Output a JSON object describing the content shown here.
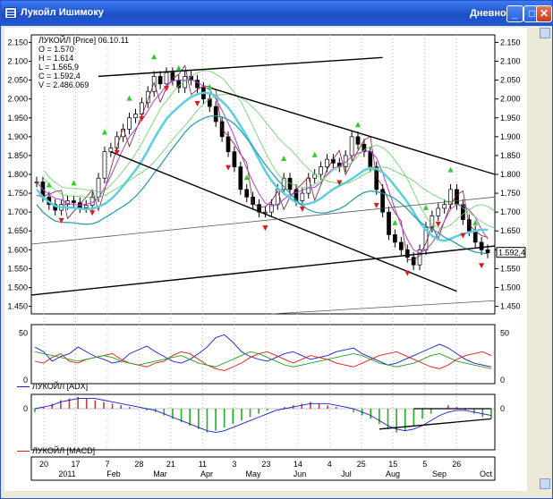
{
  "window": {
    "title": "Лукойл Ишимоку",
    "mode": "Дневной",
    "minimize_label": "_",
    "maximize_label": "□",
    "close_label": "✕"
  },
  "info": {
    "line1": "ЛУКОЙЛ [Price] 06.10.11",
    "line2": "O = 1.570",
    "line3": "H = 1.614",
    "line4": "L = 1.565,9",
    "line5": "C = 1.592,4",
    "line6": "V = 2.486.069"
  },
  "current_price_tag": "1.592,4",
  "price_axis": [
    "2.150",
    "2.100",
    "2.050",
    "2.000",
    "1.950",
    "1.900",
    "1.850",
    "1.800",
    "1.750",
    "1.700",
    "1.650",
    "1.600",
    "1.550",
    "1.500",
    "1.450"
  ],
  "left_axis": [
    "2.150",
    "2.100",
    "2.050",
    "2.000",
    "1.950",
    "1.900",
    "1.850",
    "1.800",
    "1.750",
    "1.700",
    "1.650",
    "1.600",
    "1.550",
    "1.500",
    "1.450"
  ],
  "adx_axis": [
    "50",
    "0"
  ],
  "macd_axis": [
    "0"
  ],
  "adx_legend": "ЛУКОЙЛ [ADX]",
  "macd_legend": "ЛУКОЙЛ [MACD]",
  "date_ticks": [
    "20",
    "17",
    "7",
    "28",
    "21",
    "11",
    "3",
    "23",
    "14",
    "4",
    "25",
    "15",
    "5",
    "26"
  ],
  "month_labels": [
    "2011",
    "Feb",
    "Mar",
    "Apr",
    "May",
    "Jun",
    "Jul",
    "Aug",
    "Sep",
    "Oct"
  ],
  "colors": {
    "candle": "#000000",
    "ema_fast": "#7a1a2a",
    "tenkan": "#b03dd6",
    "kijun_cyan": "#58d0e0",
    "cloud_green": "#5fd65f",
    "buy_arrow": "#2fcc2f",
    "sell_arrow": "#e01818",
    "adx_plus": "#1b1bd6",
    "adx_minus": "#e01818",
    "adx_green": "#20a020",
    "macd_hist": "#c04040",
    "macd_green": "#20b020",
    "macd_signal": "#1b1bd6"
  },
  "chart_data": {
    "type": "candlestick",
    "title": "ЛУКОЙЛ [Price]",
    "ylim": [
      1430,
      2170
    ],
    "close": [
      1780,
      1740,
      1720,
      1705,
      1720,
      1730,
      1725,
      1712,
      1718,
      1740,
      1790,
      1860,
      1870,
      1900,
      1920,
      1950,
      1960,
      1990,
      2020,
      2060,
      2040,
      2070,
      2050,
      2030,
      2060,
      2050,
      2030,
      2000,
      1980,
      1940,
      1900,
      1860,
      1820,
      1760,
      1740,
      1720,
      1700,
      1700,
      1720,
      1760,
      1790,
      1760,
      1730,
      1750,
      1790,
      1800,
      1820,
      1840,
      1830,
      1820,
      1850,
      1900,
      1880,
      1860,
      1820,
      1760,
      1700,
      1640,
      1620,
      1600,
      1580,
      1560,
      1600,
      1660,
      1690,
      1710,
      1720,
      1760,
      1720,
      1680,
      1650,
      1620,
      1600,
      1592
    ]
  },
  "adx_data": {
    "plus": [
      35,
      30,
      20,
      25,
      28,
      35,
      30,
      25,
      22,
      18,
      20,
      28,
      32,
      36,
      30,
      25,
      20,
      18,
      22,
      28,
      35,
      45,
      48,
      40,
      30,
      25,
      22,
      20,
      24,
      28,
      30,
      26,
      22,
      24,
      26,
      30,
      32,
      34,
      28,
      24,
      20,
      16,
      18,
      22,
      26,
      30,
      34,
      38,
      34,
      28,
      22,
      18,
      16,
      14
    ],
    "minus": [
      20,
      18,
      24,
      28,
      20,
      18,
      22,
      24,
      26,
      28,
      22,
      18,
      16,
      14,
      18,
      20,
      26,
      30,
      28,
      22,
      16,
      12,
      10,
      14,
      18,
      24,
      28,
      30,
      26,
      22,
      18,
      22,
      26,
      24,
      22,
      18,
      16,
      14,
      18,
      22,
      26,
      28,
      30,
      26,
      22,
      18,
      14,
      12,
      16,
      22,
      26,
      28,
      30,
      26
    ],
    "adx": [
      30,
      28,
      26,
      24,
      22,
      20,
      22,
      24,
      26,
      24,
      20,
      18,
      16,
      18,
      20,
      22,
      24,
      26,
      22,
      18,
      16,
      14,
      18,
      22,
      26,
      30,
      28,
      24,
      20,
      16,
      14,
      16,
      18,
      20,
      22,
      24,
      26,
      28,
      26,
      22,
      18,
      16,
      14,
      16,
      18,
      22,
      26,
      28,
      24,
      20,
      18,
      16,
      14,
      12
    ]
  },
  "macd_data": {
    "hist": [
      -2,
      1,
      3,
      5,
      6,
      7,
      6,
      5,
      4,
      3,
      2,
      1,
      0,
      -1,
      -2,
      -4,
      -6,
      -8,
      -10,
      -12,
      -14,
      -13,
      -11,
      -9,
      -7,
      -5,
      -3,
      -1,
      0,
      1,
      2,
      3,
      4,
      3,
      2,
      1,
      0,
      -2,
      -4,
      -6,
      -9,
      -12,
      -14,
      -13,
      -10,
      -6,
      -3,
      0,
      2,
      1,
      -1,
      -3,
      -5,
      -6
    ],
    "signal": [
      0,
      1,
      2,
      4,
      5,
      6,
      6,
      6,
      5,
      4,
      3,
      2,
      1,
      0,
      -1,
      -3,
      -5,
      -7,
      -9,
      -11,
      -13,
      -14,
      -13,
      -11,
      -9,
      -7,
      -5,
      -3,
      -1,
      0,
      1,
      2,
      3,
      3,
      3,
      2,
      1,
      0,
      -2,
      -4,
      -7,
      -10,
      -12,
      -13,
      -12,
      -10,
      -7,
      -4,
      -2,
      -1,
      -1,
      -2,
      -3,
      -4
    ]
  }
}
